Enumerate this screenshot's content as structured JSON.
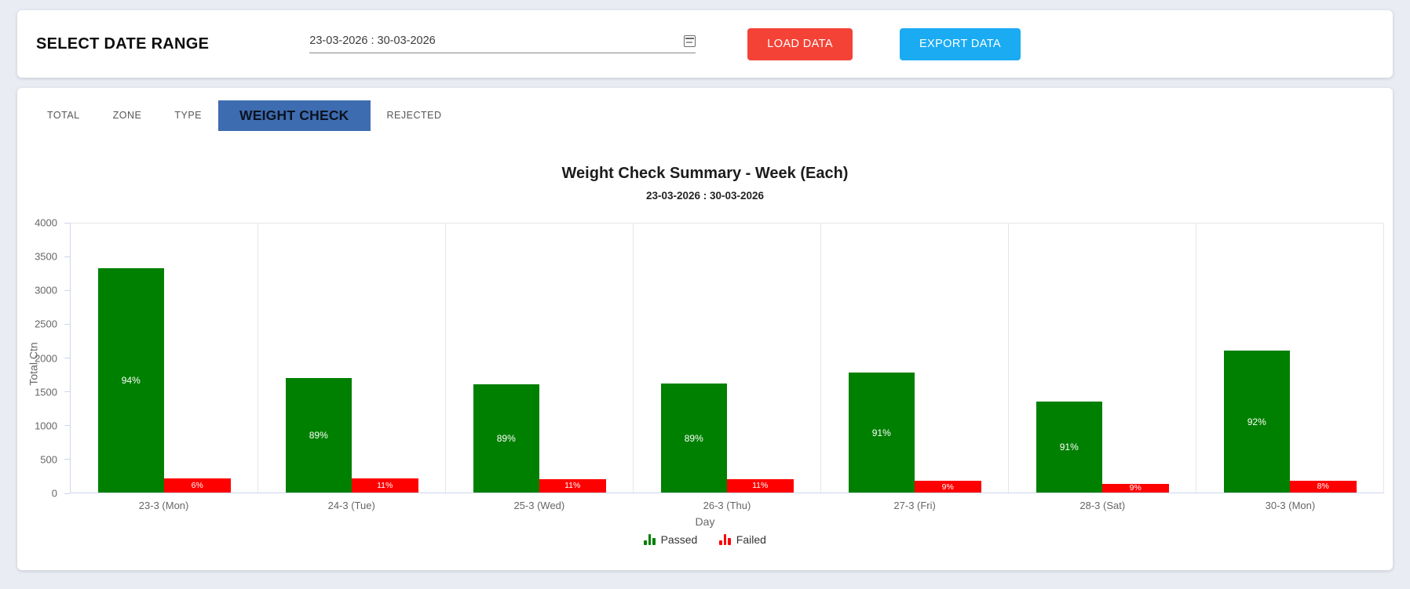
{
  "header": {
    "title": "SELECT DATE RANGE",
    "date_range_value": "23-03-2026 : 30-03-2026",
    "load_button": "LOAD DATA",
    "export_button": "EXPORT DATA"
  },
  "tabs": [
    {
      "label": "TOTAL",
      "active": false
    },
    {
      "label": "ZONE",
      "active": false
    },
    {
      "label": "TYPE",
      "active": false
    },
    {
      "label": "WEIGHT CHECK",
      "active": true
    },
    {
      "label": "REJECTED",
      "active": false
    }
  ],
  "chart_data": {
    "type": "bar",
    "title": "Weight Check Summary - Week (Each)",
    "subtitle": "23-03-2026 : 30-03-2026",
    "xlabel": "Day",
    "ylabel": "Total Ctn",
    "ylim": [
      0,
      4000
    ],
    "ytick_step": 500,
    "yticks": [
      0,
      500,
      1000,
      1500,
      2000,
      2500,
      3000,
      3500,
      4000
    ],
    "grid": "vertical-category-lines-only",
    "legend_position": "bottom-center",
    "categories": [
      "23-3 (Mon)",
      "24-3 (Tue)",
      "25-3 (Wed)",
      "26-3 (Thu)",
      "27-3 (Fri)",
      "28-3 (Sat)",
      "30-3 (Mon)"
    ],
    "series": [
      {
        "name": "Passed",
        "color": "#008000",
        "values": [
          3340,
          1700,
          1610,
          1620,
          1780,
          1350,
          2110
        ],
        "labels": [
          "94%",
          "89%",
          "89%",
          "89%",
          "91%",
          "91%",
          "92%"
        ]
      },
      {
        "name": "Failed",
        "color": "#ff0000",
        "values": [
          210,
          210,
          200,
          200,
          175,
          130,
          180
        ],
        "labels": [
          "6%",
          "11%",
          "11%",
          "11%",
          "9%",
          "9%",
          "8%"
        ]
      }
    ]
  },
  "colors": {
    "page_background": "#e9edf3",
    "card_background": "#ffffff",
    "active_tab": "#3e6cb0",
    "load_button": "#f44336",
    "export_button": "#1aabf3",
    "passed": "#008000",
    "failed": "#ff0000",
    "axis_text": "#666666"
  }
}
